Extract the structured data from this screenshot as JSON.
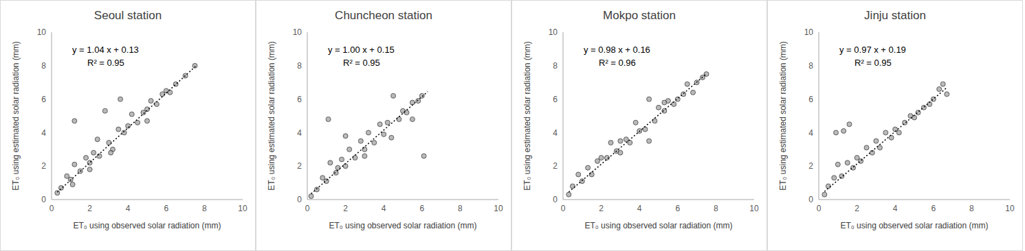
{
  "chart_data": [
    {
      "type": "scatter",
      "title": "Seoul station",
      "x_label": "ET₀ using observed solar radiation (mm)",
      "y_label": "ET₀ using estimated solar radiation (mm)",
      "annotations": [
        "y = 1.04 x + 0.13",
        "R² = 0.95"
      ],
      "xlim": [
        0,
        10
      ],
      "ylim": [
        0,
        10
      ],
      "xticks": [
        0,
        2,
        4,
        6,
        8,
        10
      ],
      "yticks": [
        0,
        2,
        4,
        6,
        8,
        10
      ],
      "grid": false,
      "series": [
        {
          "type": "scatter",
          "marker": "circle",
          "color": "#8c8c8c",
          "x": [
            0.3,
            0.5,
            0.8,
            1.0,
            1.2,
            1.2,
            1.5,
            1.8,
            2.0,
            2.2,
            2.5,
            2.8,
            3.0,
            3.2,
            3.5,
            3.8,
            4.0,
            4.2,
            4.5,
            4.8,
            5.0,
            5.2,
            5.5,
            5.8,
            6.0,
            6.2,
            6.5,
            7.0,
            7.5,
            1.1,
            2.4,
            3.1,
            5.0,
            2.0,
            3.6
          ],
          "values": [
            0.4,
            0.7,
            1.4,
            1.2,
            2.1,
            4.7,
            1.7,
            2.5,
            2.2,
            2.8,
            2.6,
            5.3,
            3.4,
            3.0,
            4.2,
            4.0,
            4.4,
            5.1,
            4.6,
            5.2,
            5.4,
            5.9,
            5.7,
            6.3,
            6.5,
            6.4,
            6.9,
            7.4,
            8.0,
            0.9,
            3.6,
            2.8,
            4.7,
            1.8,
            6.0
          ]
        },
        {
          "type": "line",
          "line_style": "dotted",
          "color": "#000000",
          "x": [
            0.3,
            7.6
          ],
          "values": [
            0.44,
            8.03
          ]
        }
      ]
    },
    {
      "type": "scatter",
      "title": "Chuncheon station",
      "x_label": "ET₀ using observed solar radiation (mm)",
      "y_label": "ET₀ using estimated solar radiation (mm)",
      "annotations": [
        "y = 1.00 x + 0.15",
        "R² = 0.95"
      ],
      "xlim": [
        0,
        10
      ],
      "ylim": [
        0,
        10
      ],
      "xticks": [
        0,
        2,
        4,
        6,
        8,
        10
      ],
      "yticks": [
        0,
        2,
        4,
        6,
        8,
        10
      ],
      "grid": false,
      "series": [
        {
          "type": "scatter",
          "marker": "circle",
          "color": "#8c8c8c",
          "x": [
            0.2,
            0.5,
            0.8,
            1.0,
            1.2,
            1.1,
            1.5,
            1.8,
            2.0,
            2.2,
            2.5,
            2.8,
            3.0,
            3.2,
            3.5,
            3.8,
            4.0,
            4.2,
            4.5,
            4.8,
            5.0,
            5.2,
            5.5,
            5.8,
            6.0,
            6.1,
            2.0,
            3.0,
            4.4,
            5.5,
            1.6
          ],
          "values": [
            0.2,
            0.6,
            1.3,
            1.1,
            2.2,
            4.8,
            1.6,
            2.4,
            2.0,
            3.0,
            2.5,
            3.5,
            3.0,
            4.0,
            3.4,
            4.5,
            3.9,
            4.6,
            6.2,
            4.8,
            5.3,
            5.2,
            5.8,
            5.9,
            6.2,
            2.6,
            3.8,
            2.6,
            3.7,
            4.8,
            1.9
          ]
        },
        {
          "type": "line",
          "line_style": "dotted",
          "color": "#000000",
          "x": [
            0.2,
            6.3
          ],
          "values": [
            0.35,
            6.45
          ]
        }
      ]
    },
    {
      "type": "scatter",
      "title": "Mokpo station",
      "x_label": "ET₀ using observed solar radiation (mm)",
      "y_label": "ET₀ using estimated solar radiation (mm)",
      "annotations": [
        "y = 0.98 x + 0.16",
        "R² = 0.96"
      ],
      "xlim": [
        0,
        10
      ],
      "ylim": [
        0,
        10
      ],
      "xticks": [
        0,
        2,
        4,
        6,
        8,
        10
      ],
      "yticks": [
        0,
        2,
        4,
        6,
        8,
        10
      ],
      "grid": false,
      "series": [
        {
          "type": "scatter",
          "marker": "circle",
          "color": "#8c8c8c",
          "x": [
            0.3,
            0.5,
            0.8,
            1.0,
            1.3,
            1.5,
            1.8,
            2.0,
            2.3,
            2.5,
            2.8,
            3.0,
            3.3,
            3.5,
            3.8,
            4.0,
            4.3,
            4.5,
            4.8,
            5.0,
            5.3,
            5.5,
            5.8,
            6.0,
            6.3,
            6.5,
            7.0,
            7.3,
            7.5,
            4.5,
            5.3,
            6.8,
            3.0
          ],
          "values": [
            0.3,
            0.8,
            1.5,
            1.1,
            1.9,
            1.5,
            2.3,
            2.5,
            2.5,
            3.4,
            2.9,
            3.5,
            3.6,
            3.4,
            4.6,
            4.1,
            4.2,
            6.0,
            4.7,
            5.5,
            5.3,
            5.9,
            5.7,
            6.0,
            6.3,
            6.9,
            7.0,
            7.3,
            7.5,
            3.5,
            5.8,
            6.4,
            2.8
          ]
        },
        {
          "type": "line",
          "line_style": "dotted",
          "color": "#000000",
          "x": [
            0.3,
            7.5
          ],
          "values": [
            0.45,
            7.51
          ]
        }
      ]
    },
    {
      "type": "scatter",
      "title": "Jinju station",
      "x_label": "ET₀ using observed solar radiation (mm)",
      "y_label": "ET₀ using estimated solar radiation (mm)",
      "annotations": [
        "y = 0.97 x + 0.19",
        "R² = 0.95"
      ],
      "xlim": [
        0,
        10
      ],
      "ylim": [
        0,
        10
      ],
      "xticks": [
        0,
        2,
        4,
        6,
        8,
        10
      ],
      "yticks": [
        0,
        2,
        4,
        6,
        8,
        10
      ],
      "grid": false,
      "series": [
        {
          "type": "scatter",
          "marker": "circle",
          "color": "#8c8c8c",
          "x": [
            0.3,
            0.5,
            0.8,
            1.0,
            1.2,
            1.5,
            1.3,
            1.8,
            2.0,
            2.2,
            2.5,
            2.8,
            3.0,
            3.2,
            3.5,
            3.8,
            4.0,
            4.2,
            4.5,
            4.8,
            5.0,
            5.2,
            5.5,
            5.8,
            6.0,
            6.3,
            6.5,
            6.7,
            0.9,
            1.6
          ],
          "values": [
            0.3,
            0.8,
            1.3,
            2.1,
            1.4,
            2.2,
            4.1,
            1.9,
            2.5,
            2.3,
            3.1,
            2.8,
            3.5,
            3.1,
            4.0,
            3.7,
            4.2,
            4.0,
            4.6,
            5.0,
            4.9,
            5.2,
            5.5,
            5.7,
            6.0,
            6.6,
            6.9,
            6.3,
            4.0,
            4.5
          ]
        },
        {
          "type": "line",
          "line_style": "dotted",
          "color": "#000000",
          "x": [
            0.3,
            6.7
          ],
          "values": [
            0.48,
            6.69
          ]
        }
      ]
    }
  ]
}
